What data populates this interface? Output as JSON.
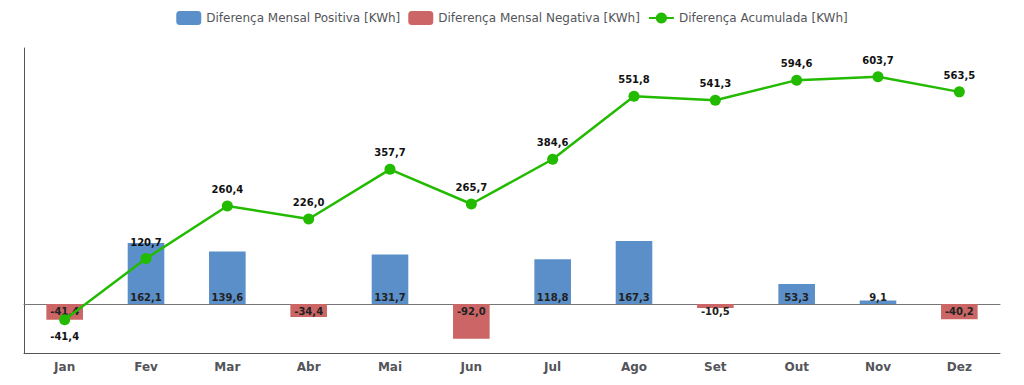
{
  "chart_data": {
    "type": "bar",
    "categories": [
      "Jan",
      "Fev",
      "Mar",
      "Abr",
      "Mai",
      "Jun",
      "Jul",
      "Ago",
      "Set",
      "Out",
      "Nov",
      "Dez"
    ],
    "series": [
      {
        "name": "Diferença Mensal Positiva [KWh]",
        "type": "bar",
        "color": "#5b8fc9",
        "values": [
          null,
          162.1,
          139.6,
          null,
          131.7,
          null,
          118.8,
          167.3,
          null,
          53.3,
          9.1,
          null
        ],
        "value_labels": [
          null,
          "162,1",
          "139,6",
          null,
          "131,7",
          null,
          "118,8",
          "167,3",
          null,
          "53,3",
          "9,1",
          null
        ]
      },
      {
        "name": "Diferença Mensal Negativa [KWh]",
        "type": "bar",
        "color": "#cc6666",
        "values": [
          -41.4,
          null,
          null,
          -34.4,
          null,
          -92.0,
          null,
          null,
          -10.5,
          null,
          null,
          -40.2
        ],
        "value_labels": [
          "-41,4",
          null,
          null,
          "-34,4",
          null,
          "-92,0",
          null,
          null,
          "-10,5",
          null,
          null,
          "-40,2"
        ]
      },
      {
        "name": "Diferença Acumulada [KWh]",
        "type": "line",
        "color": "#22bb00",
        "marker": "circle",
        "values": [
          -41.4,
          120.7,
          260.4,
          226.0,
          357.7,
          265.7,
          384.6,
          551.8,
          541.3,
          594.6,
          603.7,
          563.5
        ],
        "value_labels": [
          "-41,4",
          "120,7",
          "260,4",
          "226,0",
          "357,7",
          "265,7",
          "384,6",
          "551,8",
          "541,3",
          "594,6",
          "603,7",
          "563,5"
        ]
      }
    ],
    "ylim": [
      -130,
      680
    ],
    "yticks": [],
    "grid": false,
    "legend": "top",
    "data_labels": true,
    "tick_labels": "x"
  }
}
